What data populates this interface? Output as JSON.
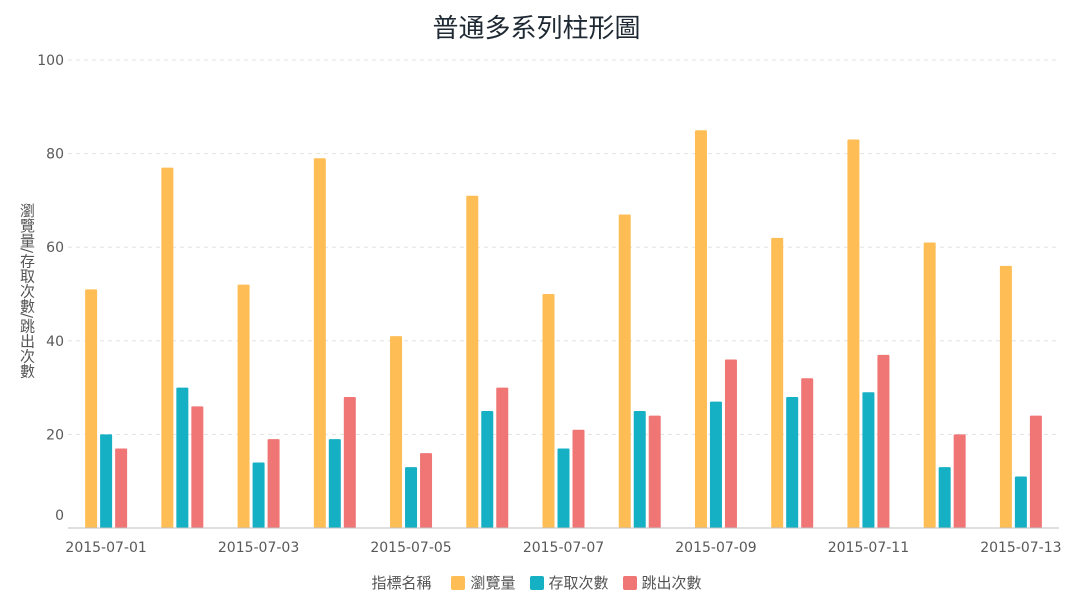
{
  "chart_data": {
    "type": "bar",
    "title": "普通多系列柱形圖",
    "ylabel": "瀏覽量/存取次數/跳出次數",
    "xlabel": "",
    "ylim": [
      0,
      100
    ],
    "y_ticks": [
      0,
      20,
      40,
      60,
      80,
      100
    ],
    "grid": true,
    "legend_position": "bottom",
    "legend_title": "指標名稱",
    "categories": [
      "2015-07-01",
      "2015-07-02",
      "2015-07-03",
      "2015-07-04",
      "2015-07-05",
      "2015-07-06",
      "2015-07-07",
      "2015-07-08",
      "2015-07-09",
      "2015-07-10",
      "2015-07-11",
      "2015-07-12",
      "2015-07-13"
    ],
    "x_tick_labels": [
      "2015-07-01",
      "",
      "2015-07-03",
      "",
      "2015-07-05",
      "",
      "2015-07-07",
      "",
      "2015-07-09",
      "",
      "2015-07-11",
      "",
      "2015-07-13"
    ],
    "series": [
      {
        "name": "瀏覽量",
        "color": "#ffbe55",
        "values": [
          51,
          77,
          52,
          79,
          41,
          71,
          50,
          67,
          85,
          62,
          83,
          61,
          56
        ]
      },
      {
        "name": "存取次數",
        "color": "#16b0c4",
        "values": [
          20,
          30,
          14,
          19,
          13,
          25,
          17,
          25,
          27,
          28,
          29,
          13,
          11
        ]
      },
      {
        "name": "跳出次數",
        "color": "#f07676",
        "values": [
          17,
          26,
          19,
          28,
          16,
          30,
          21,
          24,
          36,
          32,
          37,
          20,
          24
        ]
      }
    ]
  }
}
